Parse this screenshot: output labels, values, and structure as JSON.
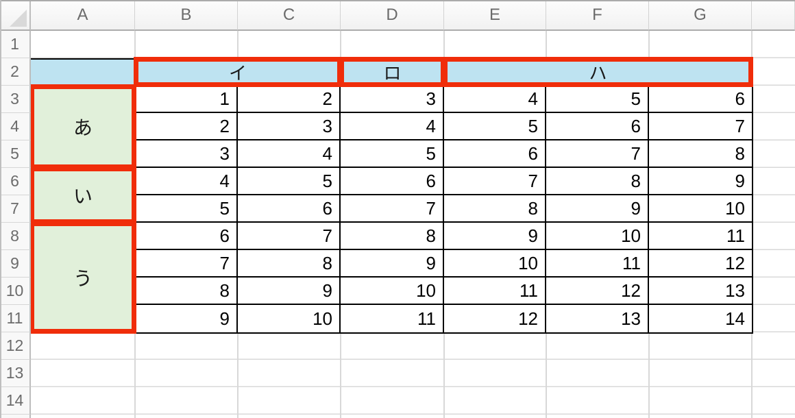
{
  "sheet": {
    "corner_label": "",
    "column_headers": [
      "A",
      "B",
      "C",
      "D",
      "E",
      "F",
      "G"
    ],
    "row_headers": [
      "1",
      "2",
      "3",
      "4",
      "5",
      "6",
      "7",
      "8",
      "9",
      "10",
      "11",
      "12",
      "13",
      "14"
    ],
    "column_groups": [
      {
        "label": "イ",
        "span": "B2:C2"
      },
      {
        "label": "ロ",
        "span": "D2:D2"
      },
      {
        "label": "ハ",
        "span": "E2:G2"
      }
    ],
    "row_groups": [
      {
        "label": "あ",
        "span": "A3:A5"
      },
      {
        "label": "い",
        "span": "A6:A7"
      },
      {
        "label": "う",
        "span": "A8:A11"
      }
    ],
    "data": [
      [
        1,
        2,
        3,
        4,
        5,
        6
      ],
      [
        2,
        3,
        4,
        5,
        6,
        7
      ],
      [
        3,
        4,
        5,
        6,
        7,
        8
      ],
      [
        4,
        5,
        6,
        7,
        8,
        9
      ],
      [
        5,
        6,
        7,
        8,
        9,
        10
      ],
      [
        6,
        7,
        8,
        9,
        10,
        11
      ],
      [
        7,
        8,
        9,
        10,
        11,
        12
      ],
      [
        8,
        9,
        10,
        11,
        12,
        13
      ],
      [
        9,
        10,
        11,
        12,
        13,
        14
      ]
    ],
    "colors": {
      "merged_header_fill": "#BEE3F1",
      "merged_row_fill": "#E1F0DA",
      "highlight_border": "#F02D0A"
    }
  }
}
